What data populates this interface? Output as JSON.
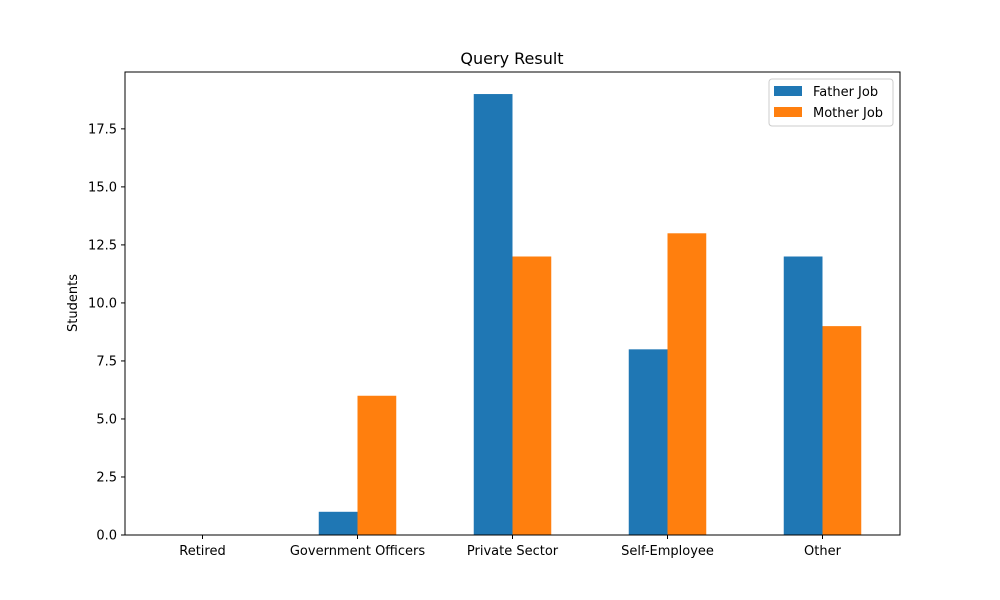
{
  "chart_data": {
    "type": "bar",
    "title": "Query Result",
    "xlabel": "",
    "ylabel": "Students",
    "categories": [
      "Retired",
      "Government Officers",
      "Private Sector",
      "Self-Employee",
      "Other"
    ],
    "series": [
      {
        "name": "Father Job",
        "color": "#1f77b4",
        "values": [
          0,
          1,
          19,
          8,
          12
        ]
      },
      {
        "name": "Mother Job",
        "color": "#ff7f0e",
        "values": [
          0,
          6,
          12,
          13,
          9
        ]
      }
    ],
    "ylim": [
      0,
      19.95
    ],
    "yticks": [
      "0.0",
      "2.5",
      "5.0",
      "7.5",
      "10.0",
      "12.5",
      "15.0",
      "17.5"
    ],
    "legend": "top-right",
    "grid": false
  }
}
